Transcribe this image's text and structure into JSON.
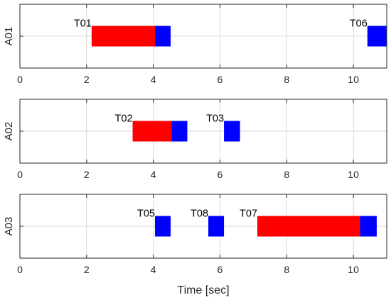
{
  "chart_data": [
    {
      "type": "bar",
      "orientation": "horizontal",
      "ylabel": "A01",
      "xlabel": "",
      "xlim": [
        0,
        11
      ],
      "xticks": [
        "0",
        "2",
        "4",
        "6",
        "8",
        "10"
      ],
      "grid": true,
      "series": [
        {
          "label": "T01",
          "segments": [
            {
              "start": 2.15,
              "end": 4.05,
              "color": "#ff0000"
            },
            {
              "start": 4.05,
              "end": 4.52,
              "color": "#0000ff"
            }
          ]
        },
        {
          "label": "T06",
          "segments": [
            {
              "start": 10.42,
              "end": 11.0,
              "color": "#0000ff"
            }
          ]
        }
      ]
    },
    {
      "type": "bar",
      "orientation": "horizontal",
      "ylabel": "A02",
      "xlabel": "",
      "xlim": [
        0,
        11
      ],
      "xticks": [
        "0",
        "2",
        "4",
        "6",
        "8",
        "10"
      ],
      "grid": true,
      "series": [
        {
          "label": "T02",
          "segments": [
            {
              "start": 3.38,
              "end": 4.55,
              "color": "#ff0000"
            },
            {
              "start": 4.55,
              "end": 5.02,
              "color": "#0000ff"
            }
          ]
        },
        {
          "label": "T03",
          "segments": [
            {
              "start": 6.12,
              "end": 6.6,
              "color": "#0000ff"
            }
          ]
        }
      ]
    },
    {
      "type": "bar",
      "orientation": "horizontal",
      "ylabel": "A03",
      "xlabel": "Time [sec]",
      "xlim": [
        0,
        11
      ],
      "xticks": [
        "0",
        "2",
        "4",
        "6",
        "8",
        "10"
      ],
      "grid": true,
      "series": [
        {
          "label": "T05",
          "segments": [
            {
              "start": 4.05,
              "end": 4.52,
              "color": "#0000ff"
            }
          ]
        },
        {
          "label": "T08",
          "segments": [
            {
              "start": 5.65,
              "end": 6.12,
              "color": "#0000ff"
            }
          ]
        },
        {
          "label": "T07",
          "segments": [
            {
              "start": 7.12,
              "end": 10.2,
              "color": "#ff0000"
            },
            {
              "start": 10.2,
              "end": 10.7,
              "color": "#0000ff"
            }
          ]
        }
      ]
    }
  ],
  "colors": {
    "axes": "#262626",
    "grid": "#d9d9d9",
    "operation": "#ff0000",
    "transfer": "#0000ff"
  }
}
